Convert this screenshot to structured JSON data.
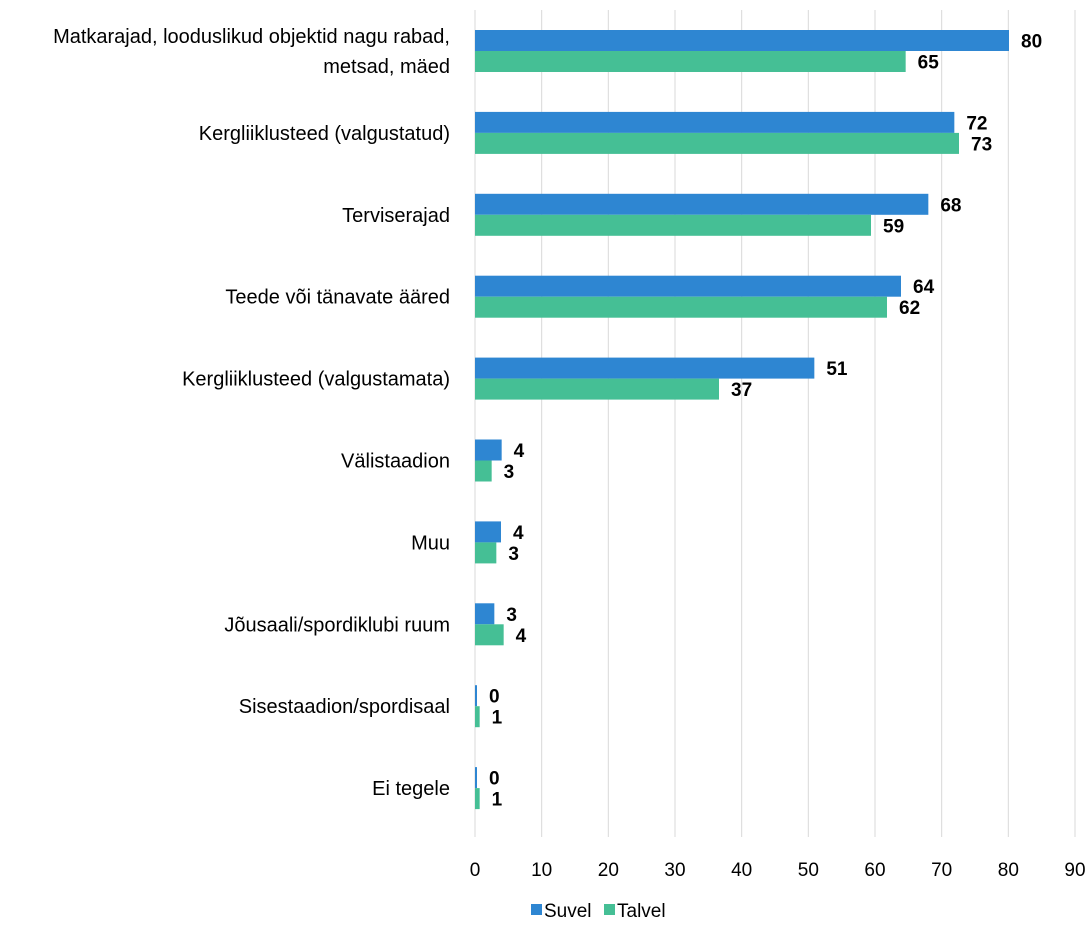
{
  "chart_data": {
    "type": "bar",
    "orientation": "horizontal",
    "categories": [
      [
        "Matkarajad, looduslikud objektid nagu rabad,",
        "metsad, mäed"
      ],
      [
        "Kergliiklusteed (valgustatud)"
      ],
      [
        "Terviserajad"
      ],
      [
        "Teede või tänavate ääred"
      ],
      [
        "Kergliiklusteed (valgustamata)"
      ],
      [
        "Välistaadion"
      ],
      [
        "Muu"
      ],
      [
        "Jõusaali/spordiklubi ruum"
      ],
      [
        "Sisestaadion/spordisaal"
      ],
      [
        "Ei tegele"
      ]
    ],
    "series": [
      {
        "name": "Suvel",
        "color": "#2e86d2",
        "values": [
          80.1,
          71.9,
          68.0,
          63.9,
          50.9,
          4.0,
          3.9,
          2.9,
          0.3,
          0.3
        ],
        "labels": [
          "80",
          "72",
          "68",
          "64",
          "51",
          "4",
          "4",
          "3",
          "0",
          "0"
        ]
      },
      {
        "name": "Talvel",
        "color": "#45bf95",
        "values": [
          64.6,
          72.6,
          59.4,
          61.8,
          36.6,
          2.5,
          3.2,
          4.3,
          0.7,
          0.7
        ],
        "labels": [
          "65",
          "73",
          "59",
          "62",
          "37",
          "3",
          "3",
          "4",
          "1",
          "1"
        ]
      }
    ],
    "xlim": [
      0,
      90
    ],
    "xticks": [
      0,
      10,
      20,
      30,
      40,
      50,
      60,
      70,
      80,
      90
    ],
    "grid": true,
    "legend": "bottom-center",
    "title": "",
    "xlabel": "",
    "ylabel": ""
  }
}
